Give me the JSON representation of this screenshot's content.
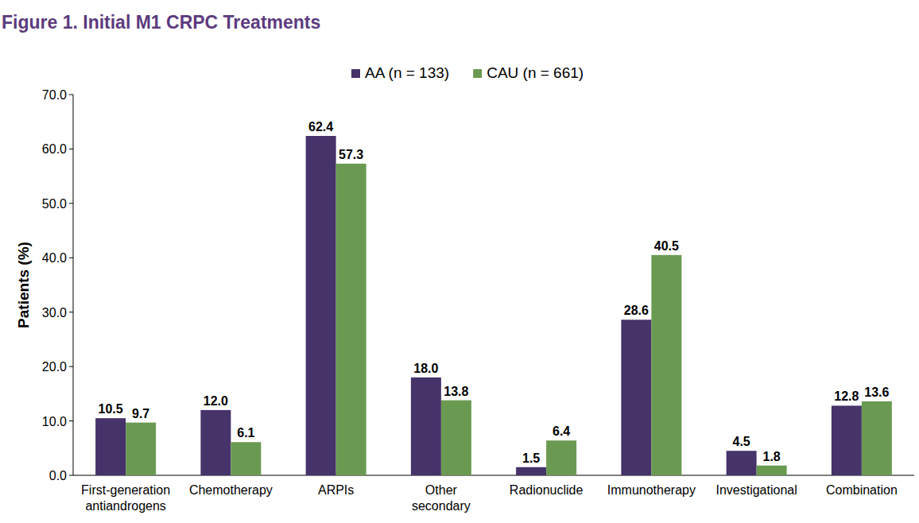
{
  "chart_data": {
    "type": "bar",
    "title": "Figure 1. Initial M1 CRPC Treatments",
    "y_label": "Patients (%)",
    "categories": [
      "First-generation antiandrogens",
      "Chemotherapy",
      "ARPIs",
      "Other secondary",
      "Radionuclide",
      "Immunotherapy",
      "Investigational",
      "Combination"
    ],
    "series": [
      {
        "name": "AA (n = 133)",
        "color": "#46336a",
        "values": [
          10.5,
          12.0,
          62.4,
          18.0,
          1.5,
          28.6,
          4.5,
          12.8
        ],
        "value_labels": [
          "10.5",
          "12.0",
          "62.4",
          "18.0",
          "1.5",
          "28.6",
          "4.5",
          "12.8"
        ]
      },
      {
        "name": "CAU (n = 661)",
        "color": "#6a9a52",
        "values": [
          9.7,
          6.1,
          57.3,
          13.8,
          6.4,
          40.5,
          1.8,
          13.6
        ],
        "value_labels": [
          "9.7",
          "6.1",
          "57.3",
          "13.8",
          "6.4",
          "40.5",
          "1.8",
          "13.6"
        ]
      }
    ],
    "ylim": [
      0,
      70
    ],
    "yticks": [
      {
        "value": 0,
        "label": "0.0"
      },
      {
        "value": 10,
        "label": "10.0"
      },
      {
        "value": 20,
        "label": "20.0"
      },
      {
        "value": 30,
        "label": "30.0"
      },
      {
        "value": 40,
        "label": "40.0"
      },
      {
        "value": 50,
        "label": "50.0"
      },
      {
        "value": 60,
        "label": "60.0"
      },
      {
        "value": 70,
        "label": "70.0"
      }
    ],
    "grid": false,
    "legend": "top",
    "data_labels": true
  }
}
